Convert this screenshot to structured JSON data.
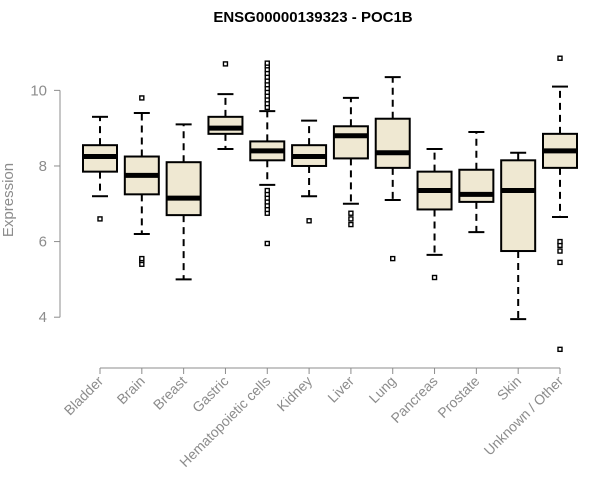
{
  "chart_data": {
    "type": "boxplot",
    "title": "ENSG00000139323 - POC1B",
    "ylabel": "Expression",
    "xlabel": "",
    "ylim": [
      3.0,
      11.2
    ],
    "yticks": [
      4,
      6,
      8,
      10
    ],
    "categories": [
      "Bladder",
      "Brain",
      "Breast",
      "Gastric",
      "Hematopoietic cells",
      "Kidney",
      "Liver",
      "Lung",
      "Pancreas",
      "Prostate",
      "Skin",
      "Unknown / Other"
    ],
    "boxes": [
      {
        "name": "Bladder",
        "whisker_low": 7.2,
        "q1": 7.85,
        "median": 8.25,
        "q3": 8.55,
        "whisker_high": 9.3,
        "outliers": [
          6.6
        ]
      },
      {
        "name": "Brain",
        "whisker_low": 6.2,
        "q1": 7.25,
        "median": 7.75,
        "q3": 8.25,
        "whisker_high": 9.4,
        "outliers": [
          5.4,
          5.5,
          5.55,
          9.8
        ]
      },
      {
        "name": "Breast",
        "whisker_low": 5.0,
        "q1": 6.7,
        "median": 7.15,
        "q3": 8.1,
        "whisker_high": 9.1,
        "outliers": []
      },
      {
        "name": "Gastric",
        "whisker_low": 8.45,
        "q1": 8.85,
        "median": 9.0,
        "q3": 9.3,
        "whisker_high": 9.9,
        "outliers": [
          10.7
        ]
      },
      {
        "name": "Hematopoietic cells",
        "whisker_low": 7.5,
        "q1": 8.15,
        "median": 8.4,
        "q3": 8.65,
        "whisker_high": 9.45,
        "outliers": [
          5.95,
          6.75,
          6.85,
          6.95,
          7.05,
          7.15,
          7.25,
          7.35,
          9.55,
          9.65,
          9.75,
          9.85,
          9.95,
          10.05,
          10.15,
          10.25,
          10.35,
          10.45,
          10.55,
          10.65,
          10.72
        ]
      },
      {
        "name": "Kidney",
        "whisker_low": 7.2,
        "q1": 8.0,
        "median": 8.25,
        "q3": 8.55,
        "whisker_high": 9.2,
        "outliers": [
          6.55
        ]
      },
      {
        "name": "Liver",
        "whisker_low": 7.0,
        "q1": 8.2,
        "median": 8.8,
        "q3": 9.05,
        "whisker_high": 9.8,
        "outliers": [
          6.45,
          6.6,
          6.75
        ]
      },
      {
        "name": "Lung",
        "whisker_low": 7.1,
        "q1": 7.95,
        "median": 8.35,
        "q3": 9.25,
        "whisker_high": 10.35,
        "outliers": [
          5.55
        ]
      },
      {
        "name": "Pancreas",
        "whisker_low": 5.65,
        "q1": 6.85,
        "median": 7.35,
        "q3": 7.85,
        "whisker_high": 8.45,
        "outliers": [
          5.05
        ]
      },
      {
        "name": "Prostate",
        "whisker_low": 6.25,
        "q1": 7.05,
        "median": 7.25,
        "q3": 7.9,
        "whisker_high": 8.9,
        "outliers": []
      },
      {
        "name": "Skin",
        "whisker_low": 3.95,
        "q1": 5.75,
        "median": 7.35,
        "q3": 8.15,
        "whisker_high": 8.35,
        "outliers": []
      },
      {
        "name": "Unknown / Other",
        "whisker_low": 6.65,
        "q1": 7.95,
        "median": 8.4,
        "q3": 8.85,
        "whisker_high": 10.1,
        "outliers": [
          3.15,
          5.45,
          5.75,
          5.9,
          6.0,
          10.85
        ]
      }
    ],
    "grid": false,
    "legend": "none"
  },
  "colors": {
    "box_fill": "#efe8d2",
    "axis": "#8c8c8c",
    "ink": "#000000"
  }
}
